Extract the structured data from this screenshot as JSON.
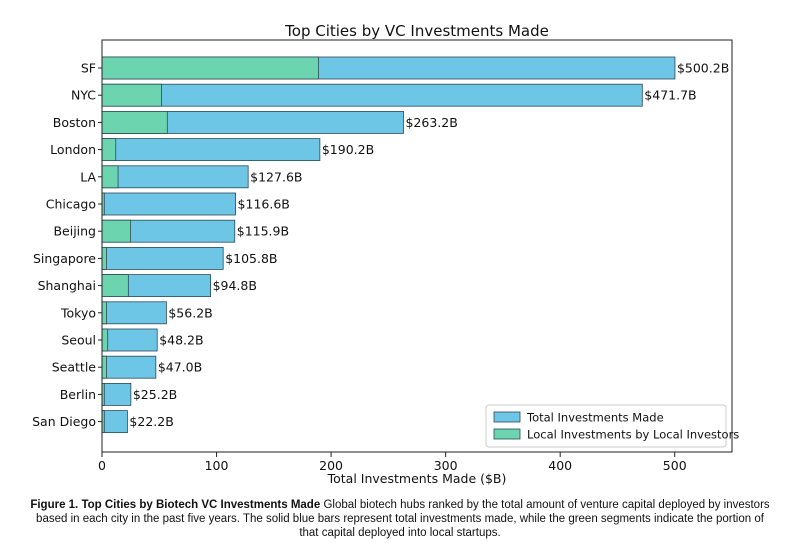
{
  "chart_data": {
    "type": "bar",
    "orientation": "horizontal",
    "stacked_overlay": true,
    "title": "Top Cities by VC Investments Made",
    "xlabel": "Total Investments Made ($B)",
    "ylabel": "",
    "xlim": [
      0,
      550
    ],
    "xticks": [
      0,
      100,
      200,
      300,
      400,
      500
    ],
    "categories": [
      "SF",
      "NYC",
      "Boston",
      "London",
      "LA",
      "Chicago",
      "Beijing",
      "Singapore",
      "Shanghai",
      "Tokyo",
      "Seoul",
      "Seattle",
      "Berlin",
      "San Diego"
    ],
    "series": [
      {
        "name": "Total Investments Made",
        "color": "#6ec6e6",
        "values": [
          500.2,
          471.7,
          263.2,
          190.2,
          127.6,
          116.6,
          115.9,
          105.8,
          94.8,
          56.2,
          48.2,
          47.0,
          25.2,
          22.2
        ],
        "data_labels": [
          "$500.2B",
          "$471.7B",
          "$263.2B",
          "$190.2B",
          "$127.6B",
          "$116.6B",
          "$115.9B",
          "$105.8B",
          "$94.8B",
          "$56.2B",
          "$48.2B",
          "$47.0B",
          "$25.2B",
          "$22.2B"
        ]
      },
      {
        "name": "Local Investments by Local Investors",
        "color": "#6dd4b0",
        "values": [
          189,
          52,
          57,
          12,
          14,
          2,
          25,
          4,
          23,
          4,
          5,
          4,
          2,
          2
        ]
      }
    ],
    "legend_position": "bottom-right",
    "grid": false
  },
  "caption": {
    "label": "Figure 1. Top Cities by Biotech VC Investments Made",
    "text": "Global biotech hubs ranked by the total amount of venture capital deployed by investors based in each city in the past five years. The solid blue bars represent total investments made, while the green segments indicate the portion of that capital deployed into local startups."
  }
}
